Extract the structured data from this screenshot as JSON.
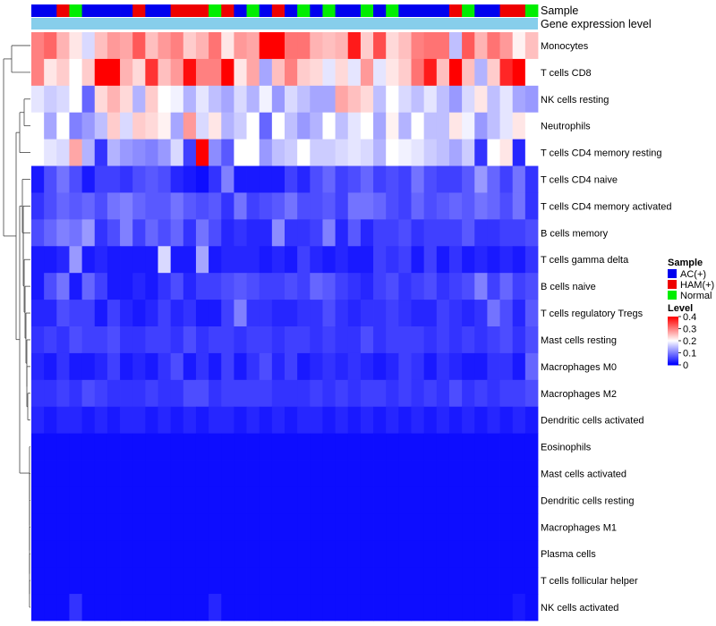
{
  "chart_data": {
    "type": "heatmap",
    "title": "",
    "annotation_tracks": [
      {
        "name": "Sample",
        "label": "Sample"
      },
      {
        "name": "Gene expression level",
        "label": "Gene expression level",
        "color": "#87CEEB"
      }
    ],
    "sample_groups": [
      "AC(+)",
      "AC(+)",
      "HAM(+)",
      "Normal",
      "AC(+)",
      "AC(+)",
      "AC(+)",
      "AC(+)",
      "HAM(+)",
      "AC(+)",
      "AC(+)",
      "HAM(+)",
      "HAM(+)",
      "HAM(+)",
      "Normal",
      "HAM(+)",
      "AC(+)",
      "Normal",
      "AC(+)",
      "HAM(+)",
      "AC(+)",
      "Normal",
      "AC(+)",
      "Normal",
      "AC(+)",
      "AC(+)",
      "Normal",
      "AC(+)",
      "Normal",
      "AC(+)",
      "AC(+)",
      "AC(+)",
      "AC(+)",
      "HAM(+)",
      "Normal",
      "AC(+)",
      "AC(+)",
      "HAM(+)",
      "HAM(+)",
      "Normal"
    ],
    "rows": [
      "Monocytes",
      "T cells CD8",
      "NK cells resting",
      "Neutrophils",
      "T cells CD4 memory resting",
      "T cells CD4 naive",
      "T cells CD4 memory activated",
      "B cells memory",
      "T cells gamma delta",
      "B cells naive",
      "T cells regulatory  Tregs",
      "Mast cells resting",
      "Macrophages M0",
      "Macrophages M2",
      "Dendritic cells activated",
      "Eosinophils",
      "Mast cells activated",
      "Dendritic cells resting",
      "Macrophages M1",
      "Plasma cells",
      "T cells follicular helper",
      "NK cells activated"
    ],
    "values": [
      [
        0.3,
        0.32,
        0.26,
        0.22,
        0.17,
        0.25,
        0.28,
        0.27,
        0.33,
        0.25,
        0.28,
        0.3,
        0.24,
        0.26,
        0.31,
        0.22,
        0.28,
        0.27,
        0.4,
        0.4,
        0.31,
        0.31,
        0.26,
        0.25,
        0.26,
        0.38,
        0.24,
        0.34,
        0.23,
        0.25,
        0.3,
        0.31,
        0.31,
        0.15,
        0.33,
        0.26,
        0.31,
        0.28,
        0.21,
        0.25
      ],
      [
        0.3,
        0.22,
        0.24,
        0.2,
        0.24,
        0.4,
        0.4,
        0.26,
        0.23,
        0.36,
        0.25,
        0.28,
        0.39,
        0.3,
        0.3,
        0.4,
        0.22,
        0.27,
        0.13,
        0.25,
        0.3,
        0.24,
        0.23,
        0.18,
        0.23,
        0.18,
        0.28,
        0.18,
        0.22,
        0.24,
        0.31,
        0.38,
        0.25,
        0.4,
        0.25,
        0.14,
        0.24,
        0.37,
        0.4,
        0.2
      ],
      [
        0.18,
        0.16,
        0.17,
        0.2,
        0.08,
        0.23,
        0.26,
        0.23,
        0.14,
        0.24,
        0.2,
        0.19,
        0.14,
        0.18,
        0.15,
        0.13,
        0.17,
        0.14,
        0.19,
        0.12,
        0.17,
        0.15,
        0.13,
        0.13,
        0.27,
        0.25,
        0.23,
        0.15,
        0.2,
        0.17,
        0.15,
        0.18,
        0.15,
        0.12,
        0.17,
        0.22,
        0.15,
        0.18,
        0.13,
        0.12
      ],
      [
        0.2,
        0.13,
        0.2,
        0.1,
        0.12,
        0.15,
        0.24,
        0.17,
        0.24,
        0.23,
        0.21,
        0.13,
        0.28,
        0.17,
        0.22,
        0.14,
        0.16,
        0.2,
        0.08,
        0.2,
        0.15,
        0.12,
        0.14,
        0.2,
        0.15,
        0.18,
        0.2,
        0.13,
        0.21,
        0.14,
        0.2,
        0.15,
        0.15,
        0.22,
        0.19,
        0.12,
        0.15,
        0.18,
        0.22,
        0.2
      ],
      [
        0.2,
        0.18,
        0.17,
        0.27,
        0.14,
        0.04,
        0.14,
        0.12,
        0.11,
        0.1,
        0.12,
        0.17,
        0.05,
        0.4,
        0.11,
        0.07,
        0.2,
        0.2,
        0.12,
        0.15,
        0.16,
        0.2,
        0.16,
        0.16,
        0.17,
        0.18,
        0.17,
        0.14,
        0.2,
        0.19,
        0.18,
        0.16,
        0.15,
        0.13,
        0.16,
        0.04,
        0.2,
        0.22,
        0.03,
        0.2
      ],
      [
        0.02,
        0.06,
        0.09,
        0.06,
        0.02,
        0.05,
        0.05,
        0.04,
        0.06,
        0.07,
        0.06,
        0.03,
        0.02,
        0.01,
        0.04,
        0.1,
        0.02,
        0.02,
        0.02,
        0.02,
        0.05,
        0.03,
        0.06,
        0.08,
        0.05,
        0.06,
        0.08,
        0.05,
        0.06,
        0.05,
        0.09,
        0.06,
        0.05,
        0.05,
        0.07,
        0.12,
        0.08,
        0.05,
        0.09,
        0.04
      ],
      [
        0.04,
        0.06,
        0.08,
        0.07,
        0.08,
        0.06,
        0.09,
        0.1,
        0.08,
        0.07,
        0.07,
        0.09,
        0.07,
        0.06,
        0.07,
        0.04,
        0.09,
        0.05,
        0.06,
        0.07,
        0.09,
        0.06,
        0.06,
        0.07,
        0.05,
        0.09,
        0.09,
        0.08,
        0.06,
        0.05,
        0.08,
        0.06,
        0.07,
        0.08,
        0.07,
        0.09,
        0.08,
        0.06,
        0.09,
        0.04
      ],
      [
        0.06,
        0.08,
        0.1,
        0.09,
        0.12,
        0.04,
        0.06,
        0.1,
        0.05,
        0.08,
        0.06,
        0.08,
        0.04,
        0.09,
        0.06,
        0.03,
        0.04,
        0.03,
        0.03,
        0.11,
        0.04,
        0.04,
        0.05,
        0.1,
        0.03,
        0.07,
        0.03,
        0.05,
        0.05,
        0.06,
        0.04,
        0.05,
        0.05,
        0.05,
        0.07,
        0.04,
        0.04,
        0.05,
        0.05,
        0.06
      ],
      [
        0.02,
        0.02,
        0.03,
        0.12,
        0.02,
        0.03,
        0.02,
        0.02,
        0.02,
        0.02,
        0.17,
        0.02,
        0.02,
        0.13,
        0.02,
        0.03,
        0.03,
        0.03,
        0.02,
        0.03,
        0.02,
        0.05,
        0.03,
        0.02,
        0.03,
        0.02,
        0.02,
        0.05,
        0.04,
        0.05,
        0.02,
        0.05,
        0.02,
        0.04,
        0.02,
        0.03,
        0.02,
        0.03,
        0.02,
        0.04
      ],
      [
        0.02,
        0.06,
        0.09,
        0.02,
        0.08,
        0.05,
        0.02,
        0.02,
        0.03,
        0.02,
        0.04,
        0.06,
        0.03,
        0.05,
        0.05,
        0.06,
        0.07,
        0.06,
        0.05,
        0.05,
        0.06,
        0.05,
        0.08,
        0.07,
        0.05,
        0.04,
        0.03,
        0.05,
        0.06,
        0.04,
        0.05,
        0.06,
        0.04,
        0.05,
        0.06,
        0.1,
        0.05,
        0.08,
        0.05,
        0.06
      ],
      [
        0.03,
        0.03,
        0.06,
        0.05,
        0.05,
        0.02,
        0.05,
        0.03,
        0.02,
        0.03,
        0.05,
        0.03,
        0.04,
        0.02,
        0.02,
        0.05,
        0.1,
        0.04,
        0.04,
        0.03,
        0.03,
        0.04,
        0.04,
        0.06,
        0.04,
        0.03,
        0.04,
        0.04,
        0.05,
        0.04,
        0.03,
        0.03,
        0.05,
        0.04,
        0.03,
        0.04,
        0.09,
        0.06,
        0.03,
        0.07
      ],
      [
        0.04,
        0.05,
        0.04,
        0.06,
        0.05,
        0.05,
        0.06,
        0.04,
        0.04,
        0.05,
        0.05,
        0.04,
        0.06,
        0.04,
        0.05,
        0.05,
        0.04,
        0.05,
        0.05,
        0.04,
        0.05,
        0.05,
        0.04,
        0.05,
        0.04,
        0.04,
        0.06,
        0.04,
        0.05,
        0.05,
        0.05,
        0.04,
        0.05,
        0.04,
        0.05,
        0.04,
        0.05,
        0.06,
        0.04,
        0.06
      ],
      [
        0.03,
        0.02,
        0.04,
        0.02,
        0.02,
        0.03,
        0.05,
        0.02,
        0.03,
        0.02,
        0.04,
        0.06,
        0.02,
        0.04,
        0.02,
        0.05,
        0.02,
        0.04,
        0.06,
        0.03,
        0.05,
        0.02,
        0.03,
        0.04,
        0.03,
        0.04,
        0.03,
        0.02,
        0.03,
        0.05,
        0.04,
        0.02,
        0.04,
        0.03,
        0.02,
        0.02,
        0.04,
        0.04,
        0.02,
        0.08
      ],
      [
        0.04,
        0.04,
        0.05,
        0.04,
        0.06,
        0.05,
        0.04,
        0.04,
        0.04,
        0.05,
        0.04,
        0.04,
        0.06,
        0.06,
        0.04,
        0.05,
        0.05,
        0.05,
        0.05,
        0.04,
        0.04,
        0.04,
        0.05,
        0.04,
        0.05,
        0.04,
        0.05,
        0.05,
        0.04,
        0.05,
        0.04,
        0.05,
        0.04,
        0.06,
        0.04,
        0.05,
        0.04,
        0.05,
        0.05,
        0.06
      ],
      [
        0.03,
        0.02,
        0.03,
        0.03,
        0.02,
        0.03,
        0.02,
        0.03,
        0.03,
        0.02,
        0.03,
        0.02,
        0.03,
        0.02,
        0.03,
        0.03,
        0.02,
        0.03,
        0.02,
        0.03,
        0.02,
        0.03,
        0.03,
        0.02,
        0.03,
        0.02,
        0.03,
        0.02,
        0.03,
        0.02,
        0.03,
        0.02,
        0.03,
        0.02,
        0.03,
        0.02,
        0.03,
        0.02,
        0.03,
        0.02
      ],
      [
        0.01,
        0.01,
        0.01,
        0.01,
        0.01,
        0.01,
        0.01,
        0.01,
        0.01,
        0.01,
        0.01,
        0.01,
        0.01,
        0.01,
        0.01,
        0.01,
        0.01,
        0.01,
        0.01,
        0.01,
        0.01,
        0.01,
        0.01,
        0.01,
        0.01,
        0.01,
        0.01,
        0.01,
        0.01,
        0.01,
        0.01,
        0.01,
        0.01,
        0.01,
        0.01,
        0.01,
        0.01,
        0.01,
        0.01,
        0.01
      ],
      [
        0.01,
        0.01,
        0.01,
        0.01,
        0.01,
        0.01,
        0.01,
        0.01,
        0.01,
        0.01,
        0.01,
        0.01,
        0.01,
        0.01,
        0.01,
        0.01,
        0.01,
        0.01,
        0.01,
        0.01,
        0.01,
        0.01,
        0.01,
        0.01,
        0.01,
        0.01,
        0.01,
        0.01,
        0.01,
        0.01,
        0.01,
        0.01,
        0.01,
        0.01,
        0.01,
        0.01,
        0.01,
        0.01,
        0.01,
        0.01
      ],
      [
        0.01,
        0.01,
        0.01,
        0.01,
        0.01,
        0.01,
        0.01,
        0.01,
        0.01,
        0.01,
        0.01,
        0.01,
        0.01,
        0.01,
        0.01,
        0.01,
        0.01,
        0.01,
        0.01,
        0.01,
        0.01,
        0.01,
        0.01,
        0.01,
        0.01,
        0.01,
        0.01,
        0.01,
        0.01,
        0.01,
        0.01,
        0.01,
        0.01,
        0.01,
        0.01,
        0.01,
        0.01,
        0.01,
        0.01,
        0.01
      ],
      [
        0.01,
        0.01,
        0.01,
        0.01,
        0.01,
        0.01,
        0.01,
        0.01,
        0.01,
        0.01,
        0.01,
        0.01,
        0.01,
        0.01,
        0.01,
        0.01,
        0.01,
        0.01,
        0.01,
        0.01,
        0.01,
        0.01,
        0.01,
        0.01,
        0.01,
        0.01,
        0.01,
        0.01,
        0.01,
        0.01,
        0.01,
        0.01,
        0.01,
        0.01,
        0.01,
        0.01,
        0.01,
        0.01,
        0.01,
        0.01
      ],
      [
        0.01,
        0.01,
        0.01,
        0.01,
        0.01,
        0.01,
        0.01,
        0.01,
        0.01,
        0.01,
        0.01,
        0.01,
        0.01,
        0.01,
        0.01,
        0.01,
        0.01,
        0.01,
        0.01,
        0.01,
        0.01,
        0.01,
        0.01,
        0.01,
        0.01,
        0.01,
        0.01,
        0.01,
        0.01,
        0.01,
        0.01,
        0.01,
        0.01,
        0.01,
        0.01,
        0.01,
        0.01,
        0.01,
        0.01,
        0.01
      ],
      [
        0.01,
        0.01,
        0.01,
        0.01,
        0.01,
        0.01,
        0.01,
        0.01,
        0.01,
        0.01,
        0.01,
        0.01,
        0.01,
        0.01,
        0.01,
        0.01,
        0.01,
        0.01,
        0.01,
        0.01,
        0.01,
        0.01,
        0.01,
        0.01,
        0.01,
        0.01,
        0.01,
        0.01,
        0.01,
        0.01,
        0.01,
        0.01,
        0.01,
        0.01,
        0.01,
        0.01,
        0.01,
        0.01,
        0.01,
        0.01
      ],
      [
        0.01,
        0.01,
        0.01,
        0.04,
        0.01,
        0.01,
        0.01,
        0.01,
        0.01,
        0.01,
        0.01,
        0.01,
        0.01,
        0.01,
        0.03,
        0.01,
        0.01,
        0.01,
        0.01,
        0.01,
        0.01,
        0.01,
        0.01,
        0.01,
        0.01,
        0.01,
        0.01,
        0.01,
        0.01,
        0.01,
        0.01,
        0.01,
        0.01,
        0.01,
        0.01,
        0.01,
        0.01,
        0.01,
        0.02,
        0.01
      ]
    ],
    "legend": {
      "sample": {
        "title": "Sample",
        "entries": [
          {
            "label": "AC(+)",
            "color": "#0000EE"
          },
          {
            "label": "HAM(+)",
            "color": "#EE0000"
          },
          {
            "label": "Normal",
            "color": "#00EE00"
          }
        ]
      },
      "level": {
        "title": "Level",
        "min": 0,
        "max": 0.4,
        "ticks": [
          "0.4",
          "0.3",
          "0.2",
          "0.1",
          "0"
        ],
        "colors": {
          "low": "#0000FF",
          "mid": "#FFFFFF",
          "high": "#FF0000"
        }
      }
    },
    "dendrogram_side": "left",
    "legend_position": "right"
  }
}
